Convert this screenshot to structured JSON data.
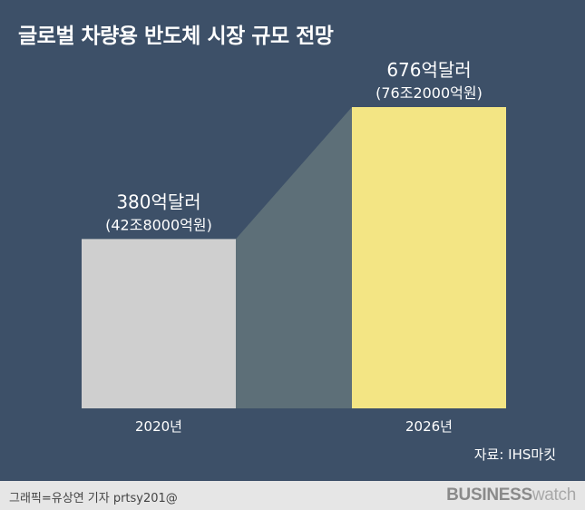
{
  "title": "글로벌 차량용 반도체 시장 규모 전망",
  "source": "자료: IHS마킷",
  "footer": {
    "credit": "그래픽=유상연 기자 prtsy201@",
    "brand_bold": "BUSINESS",
    "brand_light": "watch"
  },
  "colors": {
    "background": "#3d5068",
    "bar_2020": "#cfcfcf",
    "bar_2026": "#f3e584",
    "connector": "#5d6f78"
  },
  "chart_data": {
    "type": "bar",
    "categories": [
      "2020년",
      "2026년"
    ],
    "values": [
      380,
      676
    ],
    "value_labels": [
      "380억달러",
      "676억달러"
    ],
    "sub_labels": [
      "(42조8000억원)",
      "(76조2000억원)"
    ],
    "unit": "억달러",
    "title": "글로벌 차량용 반도체 시장 규모 전망",
    "xlabel": "",
    "ylabel": "",
    "ylim": [
      0,
      676
    ],
    "grid": false,
    "legend": "none"
  }
}
